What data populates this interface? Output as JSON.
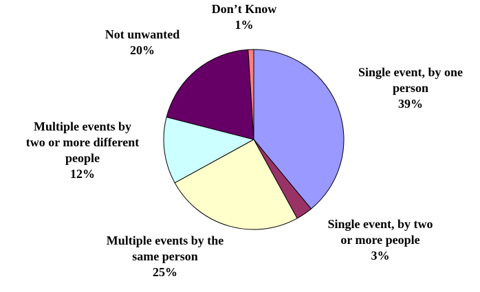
{
  "chart_data": {
    "type": "pie",
    "title": "",
    "start_angle_deg": 0,
    "direction": "clockwise",
    "slices": [
      {
        "label_lines": [
          "Single event, by one",
          "person"
        ],
        "percent_label": "39%",
        "value": 39,
        "color": "#9999ff"
      },
      {
        "label_lines": [
          "Single event, by two",
          "or more people"
        ],
        "percent_label": "3%",
        "value": 3,
        "color": "#993366"
      },
      {
        "label_lines": [
          "Multiple events by the",
          "same person"
        ],
        "percent_label": "25%",
        "value": 25,
        "color": "#ffffcc"
      },
      {
        "label_lines": [
          "Multiple events by",
          "two or more different",
          "people"
        ],
        "percent_label": "12%",
        "value": 12,
        "color": "#ccffff"
      },
      {
        "label_lines": [
          "Not unwanted"
        ],
        "percent_label": "20%",
        "value": 20,
        "color": "#660066"
      },
      {
        "label_lines": [
          "Don’t Know"
        ],
        "percent_label": "1%",
        "value": 1,
        "color": "#ff8080"
      }
    ]
  }
}
